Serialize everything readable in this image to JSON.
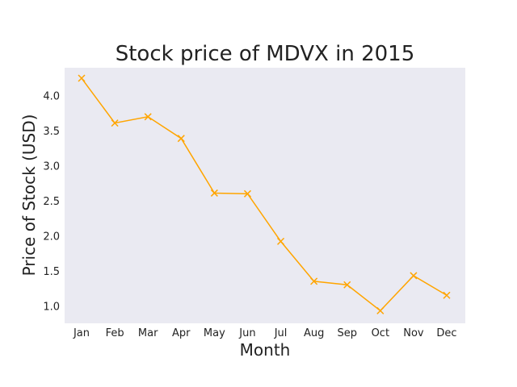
{
  "chart_data": {
    "type": "line",
    "title": "Stock price of MDVX in 2015",
    "xlabel": "Month",
    "ylabel": "Price of Stock (USD)",
    "categories": [
      "Jan",
      "Feb",
      "Mar",
      "Apr",
      "May",
      "Jun",
      "Jul",
      "Aug",
      "Sep",
      "Oct",
      "Nov",
      "Dec"
    ],
    "series": [
      {
        "values": [
          4.25,
          3.61,
          3.7,
          3.39,
          2.61,
          2.6,
          1.92,
          1.35,
          1.3,
          0.93,
          1.43,
          1.15
        ],
        "color": "#ffa500",
        "marker": "x"
      }
    ],
    "yticks": [
      1.0,
      1.5,
      2.0,
      2.5,
      3.0,
      3.5,
      4.0
    ],
    "ytick_labels": [
      "1.0",
      "1.5",
      "2.0",
      "2.5",
      "3.0",
      "3.5",
      "4.0"
    ],
    "ylim": [
      0.75,
      4.4
    ],
    "grid": false,
    "background": "#eaeaf2"
  }
}
